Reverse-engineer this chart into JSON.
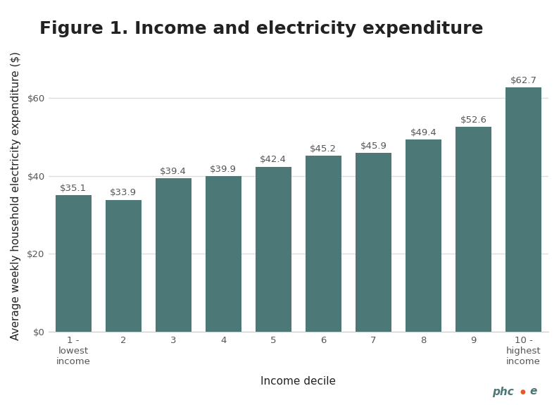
{
  "title": "Figure 1. Income and electricity expenditure",
  "xlabel": "Income decile",
  "ylabel": "Average weekly household electricity expenditure ($)",
  "categories": [
    "1 -\nlowest\nincome",
    "2",
    "3",
    "4",
    "5",
    "6",
    "7",
    "8",
    "9",
    "10 -\nhighest\nincome"
  ],
  "values": [
    35.1,
    33.9,
    39.4,
    39.9,
    42.4,
    45.2,
    45.9,
    49.4,
    52.6,
    62.7
  ],
  "bar_color": "#4d7878",
  "bar_labels": [
    "$35.1",
    "$33.9",
    "$39.4",
    "$39.9",
    "$42.4",
    "$45.2",
    "$45.9",
    "$49.4",
    "$52.6",
    "$62.7"
  ],
  "ylim": [
    0,
    70
  ],
  "yticks": [
    0,
    20,
    40,
    60
  ],
  "ytick_labels": [
    "$0",
    "$20",
    "$40",
    "$60"
  ],
  "background_color": "#ffffff",
  "grid_color": "#dddddd",
  "title_fontsize": 18,
  "axis_label_fontsize": 11,
  "tick_fontsize": 9.5,
  "bar_label_fontsize": 9.5,
  "label_color": "#555555",
  "title_color": "#222222",
  "watermark_color_ph": "#4d7878",
  "watermark_color_dot": "#e05c28"
}
